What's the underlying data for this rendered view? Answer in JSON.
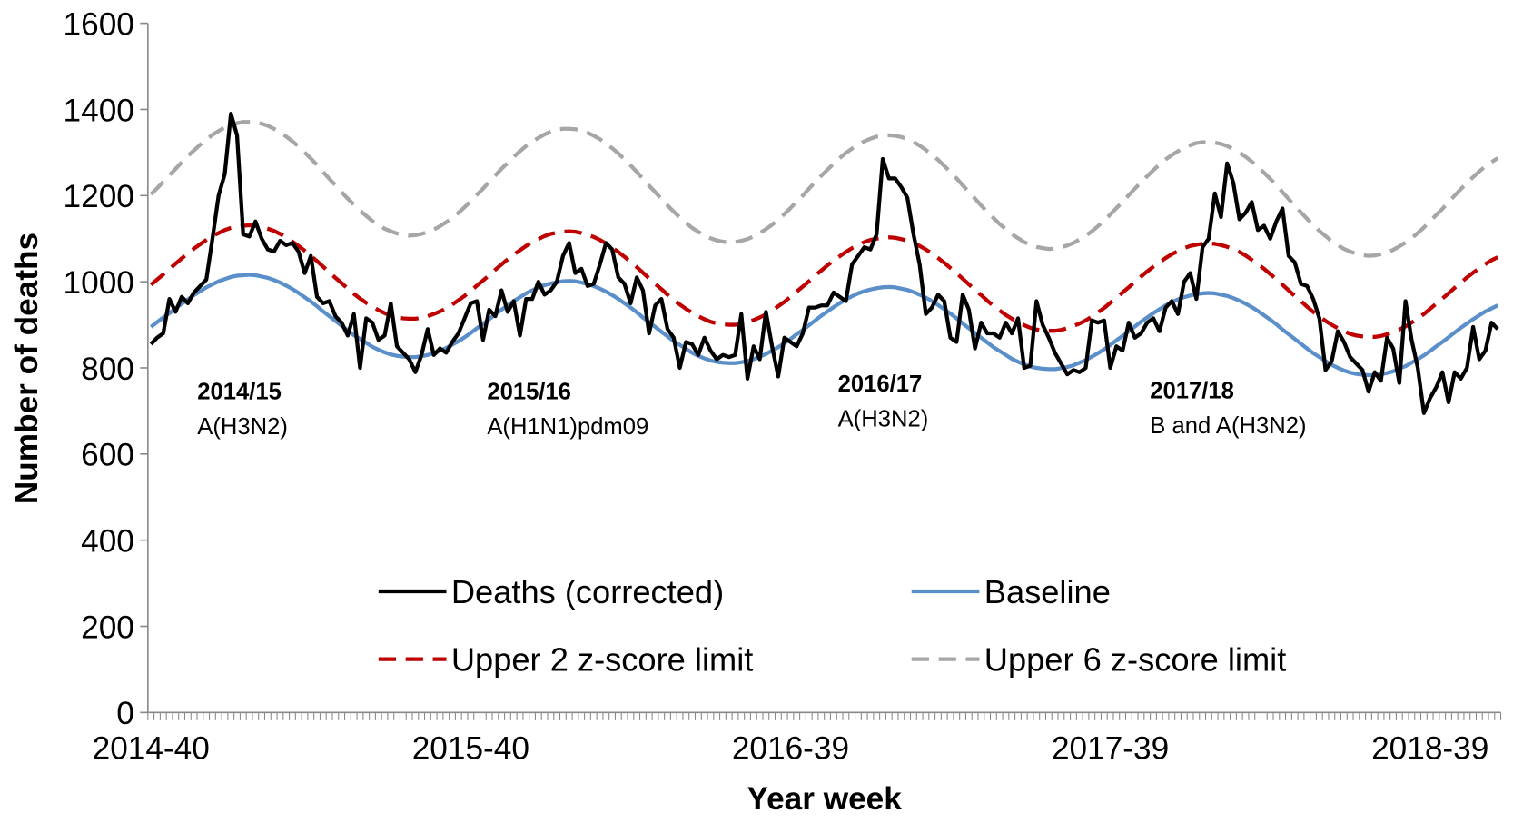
{
  "chart_data": {
    "type": "line",
    "x_label": "Year week",
    "y_label": "Number of deaths",
    "ylim": [
      0,
      1600
    ],
    "yticks": [
      0,
      200,
      400,
      600,
      800,
      1000,
      1200,
      1400,
      1600
    ],
    "legend": "lower center",
    "categories": [
      "2014-40",
      null,
      null,
      null,
      null,
      null,
      null,
      null,
      null,
      null,
      null,
      null,
      null,
      null,
      null,
      null,
      null,
      null,
      null,
      null,
      null,
      null,
      null,
      null,
      null,
      null,
      null,
      null,
      null,
      null,
      null,
      null,
      null,
      null,
      null,
      null,
      null,
      null,
      null,
      null,
      null,
      null,
      null,
      null,
      null,
      null,
      null,
      null,
      null,
      null,
      null,
      null,
      "2015-40",
      null,
      null,
      null,
      null,
      null,
      null,
      null,
      null,
      null,
      null,
      null,
      null,
      null,
      null,
      null,
      null,
      null,
      null,
      null,
      null,
      null,
      null,
      null,
      null,
      null,
      null,
      null,
      null,
      null,
      null,
      null,
      null,
      null,
      null,
      null,
      null,
      null,
      null,
      null,
      null,
      null,
      null,
      null,
      null,
      null,
      null,
      null,
      null,
      null,
      null,
      null,
      "2016-39",
      null,
      null,
      null,
      null,
      null,
      null,
      null,
      null,
      null,
      null,
      null,
      null,
      null,
      null,
      null,
      null,
      null,
      null,
      null,
      null,
      null,
      null,
      null,
      null,
      null,
      null,
      null,
      null,
      null,
      null,
      null,
      null,
      null,
      null,
      null,
      null,
      null,
      null,
      null,
      null,
      null,
      null,
      null,
      null,
      null,
      null,
      null,
      null,
      null,
      null,
      null,
      "2017-39",
      null,
      null,
      null,
      null,
      null,
      null,
      null,
      null,
      null,
      null,
      null,
      null,
      null,
      null,
      null,
      null,
      null,
      null,
      null,
      null,
      null,
      null,
      null,
      null,
      null,
      null,
      null,
      null,
      null,
      null,
      null,
      null,
      null,
      null,
      null,
      null,
      null,
      null,
      null,
      null,
      null,
      null,
      null,
      null,
      null,
      null,
      null,
      null,
      null,
      null,
      null,
      "2018-39",
      null,
      null,
      null,
      null,
      null,
      null,
      null,
      null,
      null,
      null,
      null
    ],
    "series": [
      {
        "name": "Deaths (corrected)",
        "color": "#000000",
        "dashed": false,
        "values": [
          855,
          870,
          880,
          960,
          930,
          965,
          950,
          975,
          990,
          1005,
          1100,
          1200,
          1250,
          1390,
          1340,
          1110,
          1105,
          1140,
          1100,
          1075,
          1070,
          1095,
          1085,
          1090,
          1070,
          1020,
          1060,
          965,
          950,
          955,
          920,
          905,
          875,
          925,
          800,
          915,
          905,
          865,
          875,
          950,
          850,
          835,
          820,
          790,
          830,
          890,
          830,
          845,
          835,
          860,
          880,
          915,
          950,
          955,
          865,
          935,
          920,
          980,
          930,
          955,
          875,
          960,
          960,
          1000,
          970,
          980,
          1000,
          1060,
          1090,
          1020,
          1030,
          990,
          995,
          1040,
          1090,
          1075,
          1010,
          995,
          950,
          1010,
          980,
          880,
          945,
          960,
          890,
          870,
          800,
          860,
          855,
          830,
          870,
          840,
          820,
          830,
          825,
          830,
          925,
          775,
          850,
          820,
          930,
          850,
          780,
          870,
          860,
          850,
          880,
          940,
          940,
          945,
          945,
          975,
          965,
          955,
          1040,
          1060,
          1080,
          1075,
          1110,
          1285,
          1240,
          1240,
          1220,
          1195,
          1110,
          1040,
          925,
          940,
          970,
          955,
          870,
          860,
          970,
          935,
          845,
          905,
          880,
          880,
          870,
          905,
          880,
          915,
          800,
          805,
          955,
          900,
          870,
          835,
          810,
          785,
          795,
          790,
          800,
          910,
          905,
          910,
          800,
          850,
          840,
          905,
          870,
          880,
          905,
          915,
          885,
          940,
          955,
          925,
          1000,
          1020,
          960,
          1080,
          1100,
          1205,
          1150,
          1275,
          1230,
          1145,
          1160,
          1185,
          1120,
          1130,
          1100,
          1140,
          1170,
          1060,
          1045,
          995,
          990,
          960,
          915,
          795,
          815,
          885,
          860,
          825,
          810,
          795,
          745,
          790,
          770,
          870,
          845,
          765,
          955,
          865,
          800,
          695,
          730,
          755,
          790,
          720,
          790,
          775,
          800,
          895,
          820,
          840,
          905,
          890
        ]
      },
      {
        "name": "Baseline",
        "color": "#5b8fc9",
        "dashed": false,
        "values": [
          895,
          906,
          917,
          927,
          938,
          949,
          959,
          969,
          978,
          987,
          994,
          1001,
          1006,
          1011,
          1014,
          1015,
          1016,
          1015,
          1012,
          1009,
          1004,
          998,
          991,
          983,
          974,
          964,
          954,
          943,
          931,
          920,
          909,
          898,
          887,
          876,
          867,
          858,
          849,
          842,
          836,
          831,
          828,
          826,
          825,
          825,
          827,
          830,
          834,
          840,
          846,
          854,
          862,
          871,
          881,
          892,
          902,
          913,
          924,
          935,
          945,
          955,
          964,
          973,
          980,
          987,
          992,
          996,
          999,
          1001,
          1002,
          1001,
          998,
          995,
          990,
          984,
          977,
          969,
          960,
          950,
          940,
          929,
          917,
          906,
          895,
          884,
          873,
          862,
          853,
          844,
          835,
          828,
          822,
          817,
          814,
          812,
          811,
          811,
          813,
          816,
          820,
          826,
          832,
          840,
          848,
          857,
          867,
          878,
          888,
          899,
          910,
          921,
          931,
          941,
          950,
          959,
          966,
          973,
          978,
          982,
          985,
          987,
          988,
          987,
          984,
          981,
          976,
          970,
          963,
          955,
          946,
          936,
          926,
          915,
          903,
          892,
          881,
          870,
          859,
          848,
          839,
          830,
          821,
          814,
          808,
          803,
          800,
          798,
          797,
          797,
          799,
          802,
          806,
          812,
          818,
          826,
          834,
          843,
          853,
          864,
          874,
          885,
          896,
          907,
          917,
          927,
          936,
          945,
          952,
          959,
          964,
          968,
          971,
          973,
          974,
          973,
          970,
          967,
          962,
          956,
          949,
          941,
          932,
          922,
          912,
          901,
          889,
          878,
          867,
          856,
          845,
          834,
          825,
          816,
          807,
          800,
          794,
          789,
          786,
          784,
          783,
          783,
          785,
          788,
          792,
          798,
          804,
          812,
          820,
          829,
          839,
          850,
          860,
          871,
          882,
          893,
          903,
          913,
          922,
          931,
          938,
          945
        ]
      },
      {
        "name": "Upper 2 z-score limit",
        "color": "#c00000",
        "dashed": true,
        "values": [
          993,
          1005,
          1017,
          1029,
          1042,
          1054,
          1066,
          1077,
          1087,
          1097,
          1106,
          1113,
          1120,
          1125,
          1128,
          1130,
          1131,
          1130,
          1127,
          1123,
          1118,
          1111,
          1103,
          1093,
          1083,
          1072,
          1060,
          1048,
          1035,
          1022,
          1009,
          997,
          984,
          972,
          961,
          951,
          942,
          934,
          927,
          921,
          917,
          915,
          914,
          914,
          916,
          920,
          925,
          931,
          938,
          947,
          957,
          967,
          979,
          991,
          1003,
          1015,
          1028,
          1040,
          1052,
          1063,
          1073,
          1083,
          1092,
          1099,
          1106,
          1111,
          1114,
          1116,
          1117,
          1116,
          1113,
          1109,
          1104,
          1097,
          1089,
          1079,
          1069,
          1058,
          1046,
          1034,
          1021,
          1008,
          995,
          983,
          970,
          958,
          947,
          937,
          928,
          920,
          913,
          907,
          903,
          901,
          900,
          900,
          902,
          906,
          911,
          917,
          924,
          933,
          943,
          953,
          965,
          977,
          989,
          1001,
          1014,
          1026,
          1038,
          1049,
          1059,
          1069,
          1078,
          1085,
          1092,
          1097,
          1100,
          1102,
          1103,
          1102,
          1099,
          1095,
          1090,
          1083,
          1075,
          1065,
          1055,
          1044,
          1032,
          1020,
          1007,
          994,
          981,
          969,
          956,
          944,
          933,
          923,
          914,
          906,
          899,
          893,
          889,
          887,
          886,
          886,
          888,
          892,
          897,
          903,
          910,
          919,
          929,
          939,
          951,
          963,
          975,
          987,
          1000,
          1012,
          1024,
          1035,
          1045,
          1055,
          1064,
          1071,
          1078,
          1083,
          1086,
          1088,
          1089,
          1088,
          1085,
          1081,
          1076,
          1069,
          1061,
          1051,
          1041,
          1030,
          1018,
          1006,
          993,
          980,
          967,
          955,
          942,
          930,
          919,
          909,
          900,
          892,
          885,
          879,
          875,
          873,
          872,
          872,
          874,
          878,
          883,
          889,
          896,
          905,
          915,
          925,
          937,
          949,
          961,
          973,
          986,
          998,
          1010,
          1021,
          1031,
          1041,
          1050,
          1057
        ]
      },
      {
        "name": "Upper 6 z-score limit",
        "color": "#a6a6a6",
        "dashed": true,
        "values": [
          1203,
          1217,
          1232,
          1247,
          1262,
          1277,
          1292,
          1305,
          1318,
          1330,
          1341,
          1350,
          1358,
          1364,
          1368,
          1371,
          1371,
          1370,
          1367,
          1362,
          1355,
          1347,
          1337,
          1326,
          1314,
          1300,
          1286,
          1271,
          1255,
          1239,
          1224,
          1208,
          1193,
          1179,
          1165,
          1153,
          1141,
          1132,
          1123,
          1117,
          1112,
          1109,
          1107,
          1108,
          1111,
          1115,
          1121,
          1129,
          1138,
          1148,
          1160,
          1173,
          1187,
          1202,
          1216,
          1232,
          1247,
          1262,
          1276,
          1290,
          1303,
          1315,
          1325,
          1334,
          1342,
          1348,
          1353,
          1355,
          1355,
          1354,
          1351,
          1346,
          1339,
          1331,
          1321,
          1310,
          1298,
          1284,
          1270,
          1255,
          1239,
          1223,
          1208,
          1192,
          1177,
          1163,
          1149,
          1137,
          1125,
          1116,
          1107,
          1101,
          1096,
          1093,
          1091,
          1092,
          1095,
          1099,
          1105,
          1113,
          1122,
          1132,
          1144,
          1157,
          1171,
          1186,
          1200,
          1216,
          1231,
          1246,
          1260,
          1274,
          1287,
          1299,
          1309,
          1318,
          1326,
          1332,
          1337,
          1339,
          1340,
          1339,
          1336,
          1331,
          1324,
          1316,
          1306,
          1295,
          1283,
          1269,
          1255,
          1240,
          1224,
          1208,
          1193,
          1177,
          1162,
          1148,
          1134,
          1122,
          1110,
          1101,
          1092,
          1086,
          1081,
          1078,
          1076,
          1077,
          1080,
          1084,
          1090,
          1098,
          1107,
          1117,
          1129,
          1142,
          1156,
          1171,
          1185,
          1201,
          1216,
          1231,
          1245,
          1259,
          1272,
          1284,
          1294,
          1303,
          1311,
          1317,
          1322,
          1324,
          1324,
          1323,
          1320,
          1315,
          1308,
          1300,
          1290,
          1279,
          1267,
          1253,
          1239,
          1224,
          1208,
          1192,
          1177,
          1161,
          1146,
          1132,
          1118,
          1106,
          1094,
          1085,
          1076,
          1070,
          1065,
          1062,
          1060,
          1061,
          1064,
          1068,
          1074,
          1082,
          1091,
          1101,
          1113,
          1126,
          1140,
          1155,
          1169,
          1185,
          1200,
          1215,
          1229,
          1243,
          1256,
          1268,
          1278,
          1287
        ]
      }
    ],
    "annotations": [
      {
        "season": "2014/15",
        "strain": "A(H3N2)"
      },
      {
        "season": "2015/16",
        "strain": "A(H1N1)pdm09"
      },
      {
        "season": "2016/17",
        "strain": "A(H3N2)"
      },
      {
        "season": "2017/18",
        "strain": "B and A(H3N2)"
      }
    ]
  }
}
